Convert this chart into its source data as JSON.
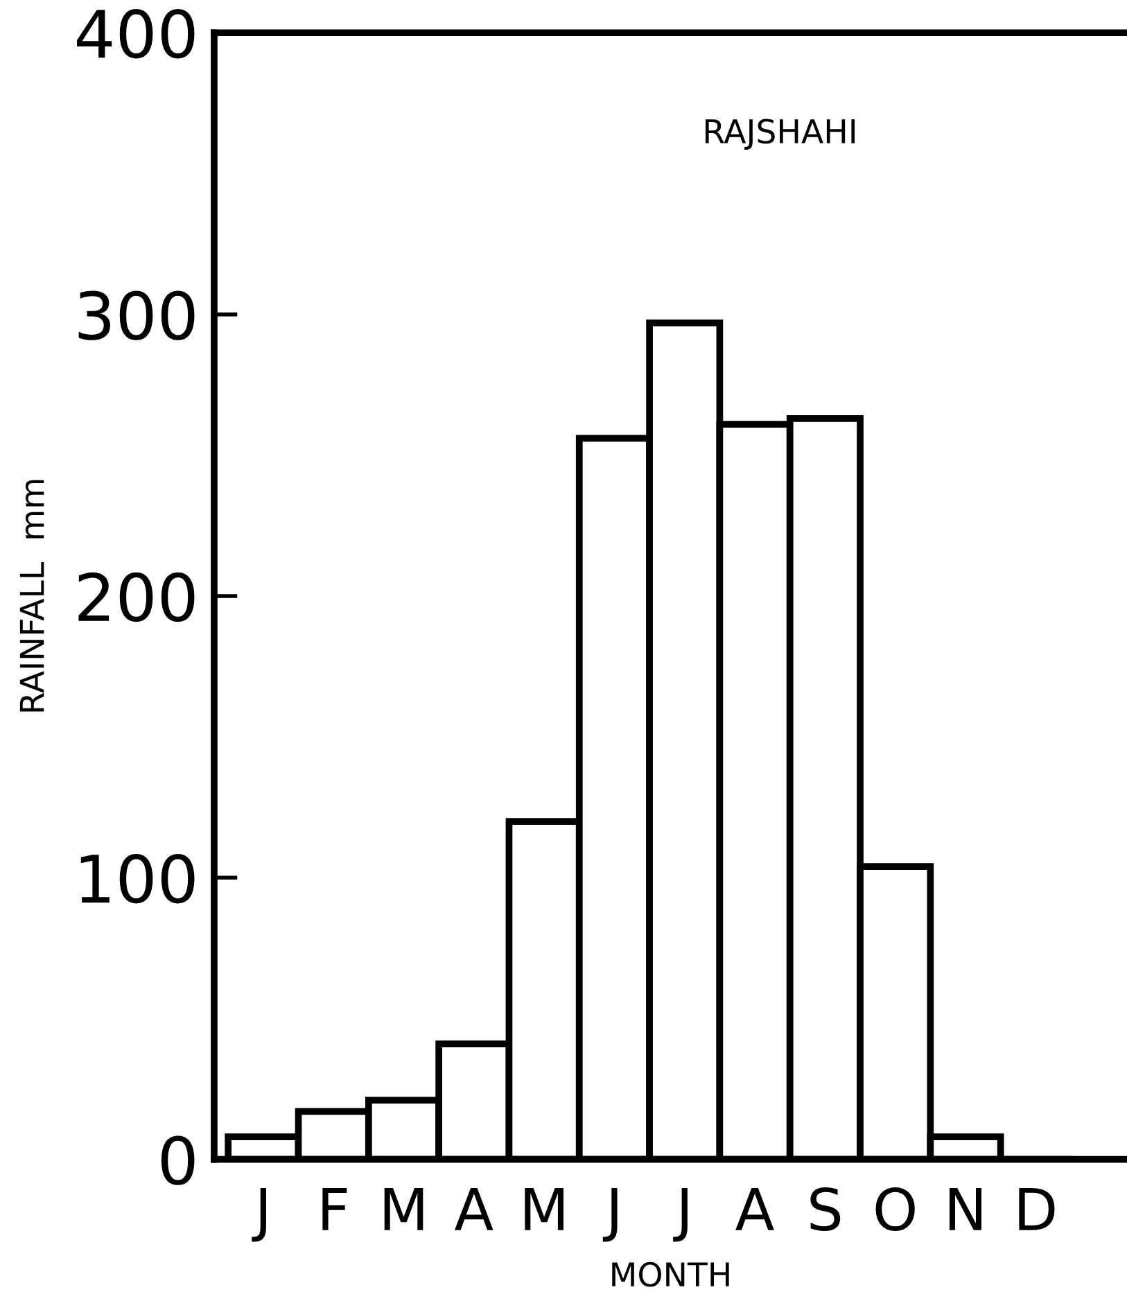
{
  "chart_data": {
    "type": "bar",
    "title": "RAJSHAHI",
    "xlabel": "MONTH",
    "ylabel": "RAINFALL  mm",
    "categories": [
      "J",
      "F",
      "M",
      "A",
      "M",
      "J",
      "J",
      "A",
      "S",
      "O",
      "N",
      "D"
    ],
    "values": [
      8,
      17,
      21,
      41,
      120,
      256,
      297,
      261,
      263,
      104,
      8,
      0
    ],
    "color": "#ffffff",
    "ylim": [
      0,
      400
    ],
    "yticks": [
      0,
      100,
      200,
      300,
      400
    ],
    "grid": false
  }
}
